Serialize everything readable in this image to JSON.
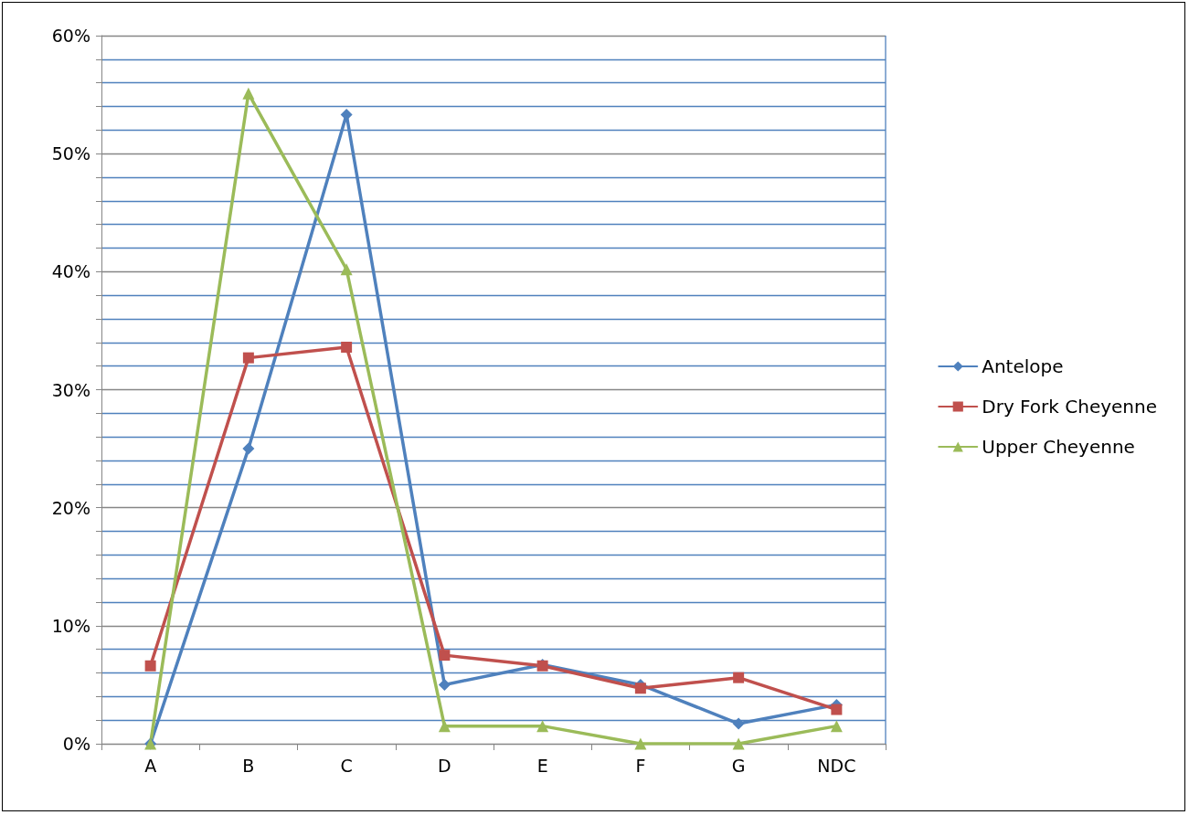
{
  "chart_data": {
    "type": "line",
    "categories": [
      "A",
      "B",
      "C",
      "D",
      "E",
      "F",
      "G",
      "NDC"
    ],
    "series": [
      {
        "name": "Antelope",
        "color": "#4f81bd",
        "marker": "diamond",
        "values": [
          0,
          25.0,
          53.3,
          5.0,
          6.7,
          5.0,
          1.7,
          3.3
        ]
      },
      {
        "name": "Dry Fork Cheyenne",
        "color": "#c0504d",
        "marker": "square",
        "values": [
          6.6,
          32.7,
          33.6,
          7.5,
          6.6,
          4.7,
          5.6,
          2.9
        ]
      },
      {
        "name": "Upper Cheyenne",
        "color": "#9bbb59",
        "marker": "triangle",
        "values": [
          0,
          55.1,
          40.2,
          1.5,
          1.5,
          0,
          0,
          1.5
        ]
      }
    ],
    "ylim": [
      0,
      60
    ],
    "yticks": [
      {
        "value": 0,
        "label": "0%"
      },
      {
        "value": 2,
        "label": null
      },
      {
        "value": 4,
        "label": null
      },
      {
        "value": 6,
        "label": null
      },
      {
        "value": 8,
        "label": null
      },
      {
        "value": 10,
        "label": "10%"
      },
      {
        "value": 12,
        "label": null
      },
      {
        "value": 14,
        "label": null
      },
      {
        "value": 16,
        "label": null
      },
      {
        "value": 18,
        "label": null
      },
      {
        "value": 20,
        "label": "20%"
      },
      {
        "value": 22,
        "label": null
      },
      {
        "value": 24,
        "label": null
      },
      {
        "value": 26,
        "label": null
      },
      {
        "value": 28,
        "label": null
      },
      {
        "value": 30,
        "label": "30%"
      },
      {
        "value": 32,
        "label": null
      },
      {
        "value": 34,
        "label": null
      },
      {
        "value": 36,
        "label": null
      },
      {
        "value": 38,
        "label": null
      },
      {
        "value": 40,
        "label": "40%"
      },
      {
        "value": 42,
        "label": null
      },
      {
        "value": 44,
        "label": null
      },
      {
        "value": 46,
        "label": null
      },
      {
        "value": 48,
        "label": null
      },
      {
        "value": 50,
        "label": "50%"
      },
      {
        "value": 52,
        "label": null
      },
      {
        "value": 54,
        "label": null
      },
      {
        "value": 56,
        "label": null
      },
      {
        "value": 58,
        "label": null
      },
      {
        "value": 60,
        "label": "60%"
      }
    ],
    "grid": "y",
    "legend": "right",
    "line_style": "solid"
  }
}
